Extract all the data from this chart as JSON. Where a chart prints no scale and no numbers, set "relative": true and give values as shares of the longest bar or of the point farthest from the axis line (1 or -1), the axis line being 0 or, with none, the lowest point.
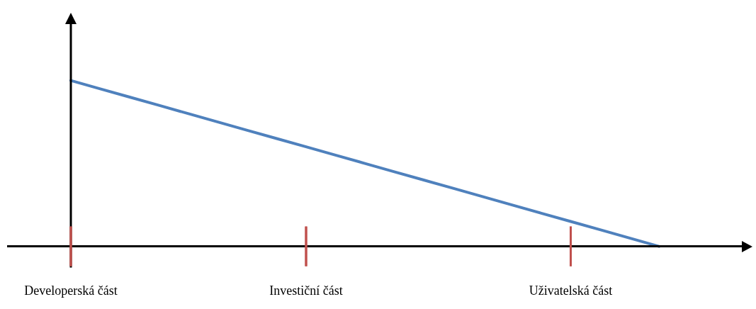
{
  "chart_data": {
    "type": "line",
    "relative": true,
    "categories": [
      "Developerská část",
      null,
      null,
      null,
      null,
      null,
      null,
      null,
      "Investiční část",
      null,
      null,
      null,
      null,
      null,
      null,
      null,
      null,
      "Uživatelská část",
      null,
      null,
      null
    ],
    "series": [
      {
        "color": "#4f81bd",
        "values": [
          1,
          0.95,
          0.9,
          0.85,
          0.8,
          0.75,
          0.7,
          0.65,
          0.6,
          0.55,
          0.5,
          0.45,
          0.4,
          0.35,
          0.3,
          0.25,
          0.2,
          0.15,
          0.1,
          0.05,
          0
        ]
      }
    ],
    "ref_lines": [
      {
        "axis": "x",
        "value": "Developerská část",
        "color": "#c0504d"
      },
      {
        "axis": "x",
        "value": "Investiční část",
        "color": "#c0504d"
      },
      {
        "axis": "x",
        "value": "Uživatelská část",
        "color": "#c0504d"
      }
    ],
    "grid": "x",
    "legend": false,
    "marker": "none",
    "line_style": "solid"
  }
}
